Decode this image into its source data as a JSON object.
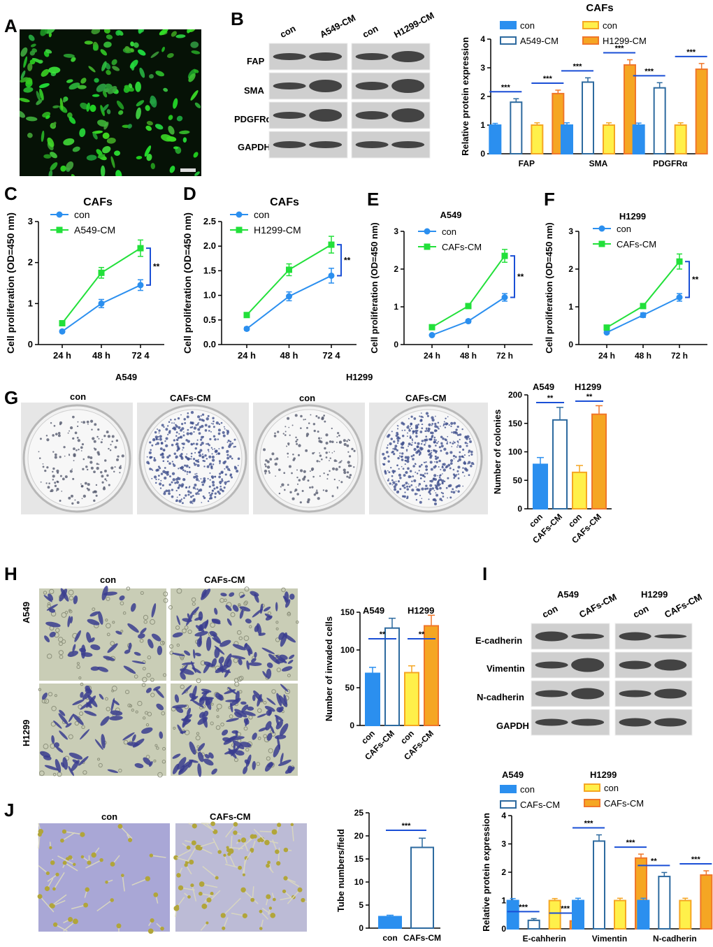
{
  "panel_letters": {
    "A": "A",
    "B": "B",
    "C": "C",
    "D": "D",
    "E": "E",
    "F": "F",
    "G": "G",
    "H": "H",
    "I": "I",
    "J": "J"
  },
  "colors": {
    "blue": "#2b8fef",
    "blue_outline": "#2d6a9f",
    "yellow": "#fff04a",
    "orange": "#f5a623",
    "orange_edge": "#f0762a",
    "green": "#22e03a"
  },
  "panel_b": {
    "blot": {
      "columns_left": [
        "con",
        "A549-CM"
      ],
      "columns_right": [
        "con",
        "H1299-CM"
      ],
      "rows": [
        "FAP",
        "SMA",
        "PDGFRα",
        "GAPDH"
      ]
    }
  },
  "panel_g": {
    "group_left": "A549",
    "group_right": "H1299",
    "dishes": [
      "con",
      "CAFs-CM",
      "con",
      "CAFs-CM"
    ]
  },
  "panel_h": {
    "columns": [
      "con",
      "CAFs-CM"
    ],
    "rows": [
      "A549",
      "H1299"
    ]
  },
  "panel_i": {
    "blot": {
      "group_left": "A549",
      "group_right": "H1299",
      "columns": [
        "con",
        "CAFs-CM",
        "con",
        "CAFs-CM"
      ],
      "rows": [
        "E-cadherin",
        "Vimentin",
        "N-cadherin",
        "GAPDH"
      ]
    }
  },
  "panel_j": {
    "columns": [
      "con",
      "CAFs-CM"
    ]
  },
  "chart_data": [
    {
      "id": "B-bar",
      "type": "bar",
      "title": "CAFs",
      "ylabel": "Relative protein expression",
      "ylim": [
        0,
        4
      ],
      "yticks": [
        "0",
        "1",
        "2",
        "3",
        "4"
      ],
      "categories": [
        "FAP",
        "SMA",
        "PDGFRα"
      ],
      "legend": [
        "con",
        "A549-CM",
        "con",
        "H1299-CM"
      ],
      "series": [
        {
          "name": "con",
          "values": [
            1.0,
            1.0,
            1.0
          ],
          "err": [
            0.06,
            0.08,
            0.07
          ]
        },
        {
          "name": "A549-CM",
          "values": [
            1.8,
            2.5,
            2.3
          ],
          "err": [
            0.12,
            0.15,
            0.18
          ]
        },
        {
          "name": "con",
          "values": [
            1.0,
            1.0,
            1.0
          ],
          "err": [
            0.08,
            0.08,
            0.08
          ]
        },
        {
          "name": "H1299-CM",
          "values": [
            2.1,
            3.1,
            2.95
          ],
          "err": [
            0.12,
            0.18,
            0.2
          ]
        }
      ],
      "sig": [
        "***",
        "***",
        "***",
        "***",
        "***",
        "***"
      ]
    },
    {
      "id": "C-line",
      "type": "line",
      "title": "CAFs",
      "ylabel": "Cell proliferation (OD=450 nm)",
      "ylim": [
        0,
        3
      ],
      "yticks": [
        "0",
        "1",
        "2",
        "3"
      ],
      "categories": [
        "24 h",
        "48 h",
        "72 4"
      ],
      "series": [
        {
          "name": "con",
          "values": [
            0.32,
            1.0,
            1.45
          ],
          "err": [
            0.03,
            0.1,
            0.13
          ]
        },
        {
          "name": "A549-CM",
          "values": [
            0.52,
            1.75,
            2.35
          ],
          "err": [
            0.04,
            0.13,
            0.2
          ]
        }
      ],
      "sig": "**"
    },
    {
      "id": "D-line",
      "type": "line",
      "title": "CAFs",
      "ylabel": "Cell proliferation (OD=450 nm)",
      "ylim": [
        0,
        2.5
      ],
      "yticks": [
        "0.0",
        "0.5",
        "1.0",
        "1.5",
        "2.0",
        "2.5"
      ],
      "categories": [
        "24 h",
        "48 h",
        "72 4"
      ],
      "series": [
        {
          "name": "con",
          "values": [
            0.32,
            0.98,
            1.4
          ],
          "err": [
            0.03,
            0.09,
            0.15
          ]
        },
        {
          "name": "H1299-CM",
          "values": [
            0.6,
            1.52,
            2.03
          ],
          "err": [
            0.04,
            0.12,
            0.17
          ]
        }
      ],
      "sig": "**"
    },
    {
      "id": "E-line",
      "type": "line",
      "title": "A549",
      "ylabel": "Cell proliferation (OD=450 nm)",
      "ylim": [
        0,
        3
      ],
      "yticks": [
        "0",
        "1",
        "2",
        "3"
      ],
      "categories": [
        "24 h",
        "48 h",
        "72 h"
      ],
      "series": [
        {
          "name": "con",
          "values": [
            0.25,
            0.62,
            1.25
          ],
          "err": [
            0.02,
            0.04,
            0.1
          ]
        },
        {
          "name": "CAFs-CM",
          "values": [
            0.46,
            1.02,
            2.35
          ],
          "err": [
            0.03,
            0.05,
            0.17
          ]
        }
      ],
      "sig": "**"
    },
    {
      "id": "F-line",
      "type": "line",
      "title": "H1299",
      "ylabel": "Cell proliferation (OD=450 nm)",
      "ylim": [
        0,
        3
      ],
      "yticks": [
        "0",
        "1",
        "2",
        "3"
      ],
      "categories": [
        "24 h",
        "48 h",
        "72 h"
      ],
      "series": [
        {
          "name": "con",
          "values": [
            0.32,
            0.78,
            1.25
          ],
          "err": [
            0.03,
            0.06,
            0.1
          ]
        },
        {
          "name": "CAFs-CM",
          "values": [
            0.45,
            1.02,
            2.2
          ],
          "err": [
            0.03,
            0.05,
            0.2
          ]
        }
      ],
      "sig": "**"
    },
    {
      "id": "G-bar",
      "type": "bar",
      "ylabel": "Number of colonies",
      "ylim": [
        0,
        200
      ],
      "yticks": [
        "0",
        "50",
        "100",
        "150",
        "200"
      ],
      "group_labels": [
        "A549",
        "H1299"
      ],
      "categories": [
        "con",
        "CAFs-CM",
        "con",
        "CAFs-CM"
      ],
      "values": [
        78,
        156,
        64,
        166
      ],
      "err": [
        12,
        22,
        12,
        15
      ],
      "sig": [
        "**",
        "**"
      ]
    },
    {
      "id": "H-bar",
      "type": "bar",
      "ylabel": "Number of invaded cells",
      "ylim": [
        0,
        150
      ],
      "yticks": [
        "0",
        "50",
        "100",
        "150"
      ],
      "group_labels": [
        "A549",
        "H1299"
      ],
      "categories": [
        "con",
        "CAFs-CM",
        "con",
        "CAFs-CM"
      ],
      "values": [
        69,
        129,
        70,
        132
      ],
      "err": [
        8,
        13,
        9,
        14
      ],
      "sig": [
        "**",
        "**"
      ]
    },
    {
      "id": "J-bar",
      "type": "bar",
      "ylabel": "Tube numbers/field",
      "ylim": [
        0,
        25
      ],
      "yticks": [
        "0",
        "5",
        "10",
        "15",
        "20",
        "25"
      ],
      "categories": [
        "con",
        "CAFs-CM"
      ],
      "values": [
        2.5,
        17.5
      ],
      "err": [
        0.3,
        2.0
      ],
      "sig": [
        "***"
      ]
    },
    {
      "id": "I-bar",
      "type": "bar",
      "ylabel": "Relative protein expression",
      "ylim": [
        0,
        4
      ],
      "yticks": [
        "0",
        "1",
        "2",
        "3",
        "4"
      ],
      "group_labels": [
        "A549",
        "H1299"
      ],
      "categories": [
        "E-cahherin",
        "Vimentin",
        "N-cadherin"
      ],
      "legend": [
        "con",
        "CAFs-CM",
        "con",
        "CAFs-CM"
      ],
      "series": [
        {
          "name": "con",
          "values": [
            1.0,
            1.0,
            1.0
          ],
          "err": [
            0.07,
            0.08,
            0.08
          ]
        },
        {
          "name": "CAFs-CM",
          "values": [
            0.3,
            3.1,
            1.85
          ],
          "err": [
            0.06,
            0.22,
            0.14
          ]
        },
        {
          "name": "con",
          "values": [
            1.0,
            1.0,
            1.0
          ],
          "err": [
            0.07,
            0.08,
            0.08
          ]
        },
        {
          "name": "CAFs-CM",
          "values": [
            0.28,
            2.5,
            1.9
          ],
          "err": [
            0.03,
            0.14,
            0.15
          ]
        }
      ],
      "sig": [
        "***",
        "***",
        "***",
        "***",
        "**",
        "***"
      ]
    }
  ]
}
